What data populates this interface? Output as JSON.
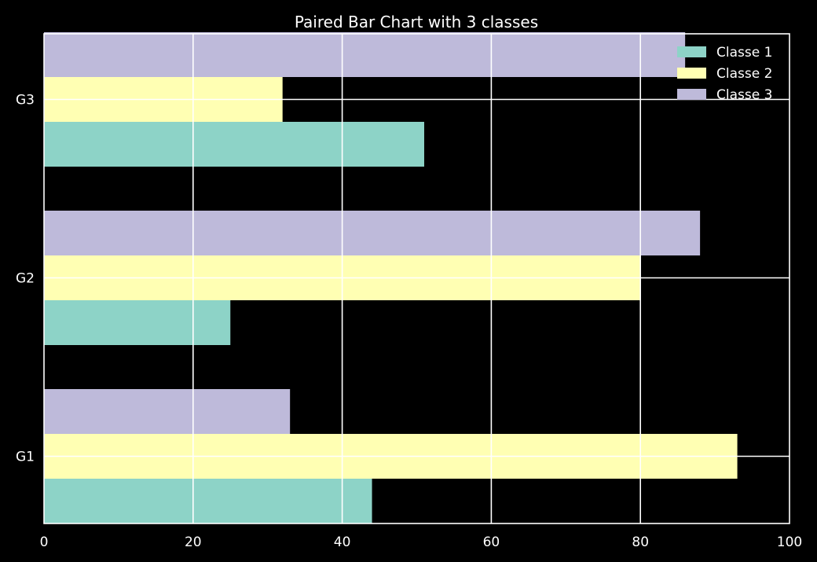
{
  "chart_data": {
    "type": "bar",
    "orientation": "horizontal",
    "title": "Paired Bar Chart with 3 classes",
    "xlabel": "",
    "ylabel": "",
    "categories": [
      "G1",
      "G2",
      "G3"
    ],
    "series": [
      {
        "name": "Classe 1",
        "values": [
          44,
          25,
          51
        ],
        "color": "#8dd3c7"
      },
      {
        "name": "Classe 2",
        "values": [
          93,
          80,
          32
        ],
        "color": "#ffffb3"
      },
      {
        "name": "Classe 3",
        "values": [
          33,
          88,
          86
        ],
        "color": "#bebada"
      }
    ],
    "xlim": [
      0,
      100
    ],
    "xticks": [
      0,
      20,
      40,
      60,
      80,
      100
    ],
    "grid": true,
    "legend": "top-right",
    "background": "#000000",
    "foreground": "#ffffff"
  }
}
